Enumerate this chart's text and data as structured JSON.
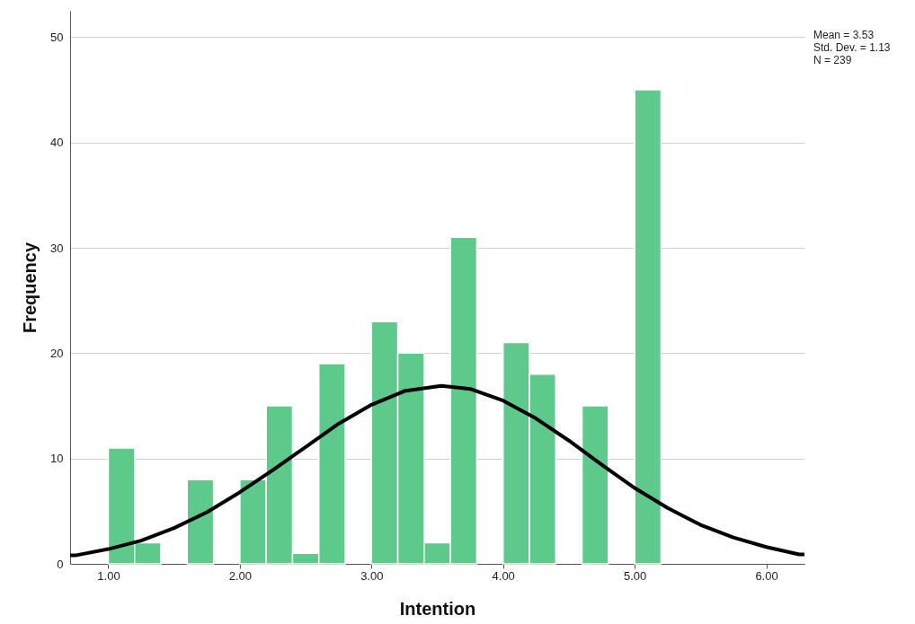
{
  "chart_data": {
    "type": "histogram",
    "xlabel": "Intention",
    "ylabel": "Frequency",
    "bins": [
      1.0,
      1.2,
      1.4,
      1.6,
      1.8,
      2.0,
      2.2,
      2.4,
      2.6,
      2.8,
      3.0,
      3.2,
      3.4,
      3.6,
      3.8,
      4.0,
      4.2,
      4.4,
      4.6,
      4.8,
      5.0,
      5.2
    ],
    "values": [
      11,
      2,
      0,
      8,
      0,
      8,
      15,
      1,
      19,
      0,
      23,
      20,
      2,
      31,
      0,
      21,
      18,
      0,
      15,
      0,
      45
    ],
    "color": "#5dc98b",
    "series": [
      {
        "type": "line",
        "color": "#000000",
        "x": [
          0.71,
          0.75,
          1.0,
          1.25,
          1.5,
          1.75,
          2.0,
          2.25,
          2.5,
          2.75,
          3.0,
          3.25,
          3.53,
          3.75,
          4.0,
          4.25,
          4.5,
          4.75,
          5.0,
          5.25,
          5.5,
          5.75,
          6.0,
          6.25,
          6.29
        ],
        "values": [
          0.8,
          0.8,
          1.4,
          2.2,
          3.4,
          4.9,
          6.8,
          8.9,
          11.1,
          13.3,
          15.1,
          16.4,
          16.9,
          16.6,
          15.5,
          13.8,
          11.7,
          9.4,
          7.2,
          5.3,
          3.7,
          2.5,
          1.6,
          0.9,
          0.9
        ]
      }
    ],
    "xlim": [
      0.71,
      6.29
    ],
    "ylim": [
      0,
      52.5
    ],
    "xticks": [
      {
        "value": 1,
        "label": "1.00"
      },
      {
        "value": 2,
        "label": "2.00"
      },
      {
        "value": 3,
        "label": "3.00"
      },
      {
        "value": 4,
        "label": "4.00"
      },
      {
        "value": 5,
        "label": "5.00"
      },
      {
        "value": 6,
        "label": "6.00"
      }
    ],
    "yticks": [
      0,
      10,
      20,
      30,
      40,
      50
    ],
    "grid": "y",
    "annotations": [
      "Mean = 3.53",
      "Std. Dev. = 1.13",
      "N = 239"
    ]
  }
}
